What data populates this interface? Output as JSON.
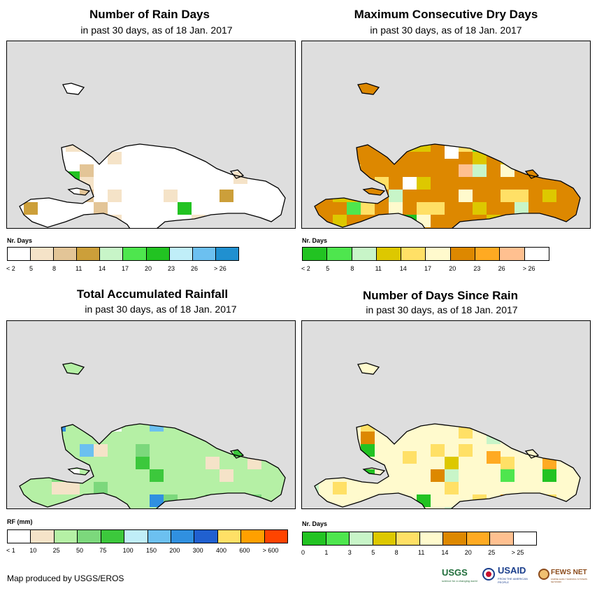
{
  "panels": [
    {
      "title": "Number of Rain Days",
      "subtitle": "in past 30 days, as of 18 Jan. 2017",
      "legend": {
        "title": "Nr. Days",
        "colors": [
          "#ffffff",
          "#f5e3c8",
          "#e3c597",
          "#cc9f3a",
          "#c8f5c8",
          "#4ee64e",
          "#22c322",
          "#c0eef8",
          "#6cc0f0",
          "#2090d0"
        ],
        "labels": [
          "< 2",
          "5",
          "8",
          "11",
          "14",
          "17",
          "20",
          "23",
          "26",
          "> 26"
        ]
      },
      "map": {
        "base": "#ffffff",
        "patches": [
          [
            "#f5e3c8",
            20
          ],
          [
            "#e3c597",
            4
          ],
          [
            "#cc9f3a",
            3
          ],
          [
            "#22c322",
            2
          ],
          [
            "#4ee64e",
            2
          ]
        ]
      }
    },
    {
      "title": "Maximum Consecutive Dry Days",
      "subtitle": "in past 30 days, as of 18 Jan. 2017",
      "legend": {
        "title": "Nr. Days",
        "colors": [
          "#22c322",
          "#4ee64e",
          "#c8f5c8",
          "#ddc800",
          "#ffe066",
          "#fffacd",
          "#dd8800",
          "#ffaa22",
          "#ffc090",
          "#ffffff"
        ],
        "labels": [
          "< 2",
          "5",
          "8",
          "11",
          "14",
          "17",
          "20",
          "23",
          "26",
          "> 26"
        ]
      },
      "map": {
        "base": "#dd8800",
        "patches": [
          [
            "#ddc800",
            18
          ],
          [
            "#ffe066",
            10
          ],
          [
            "#fffacd",
            8
          ],
          [
            "#c8f5c8",
            6
          ],
          [
            "#4ee64e",
            3
          ],
          [
            "#22c322",
            2
          ],
          [
            "#ffc090",
            1
          ],
          [
            "#ffffff",
            2
          ]
        ]
      }
    },
    {
      "title": "Total Accumulated Rainfall",
      "subtitle": "in past 30 days, as of 18 Jan. 2017",
      "legend": {
        "title": "RF (mm)",
        "colors": [
          "#ffffff",
          "#f5e3c8",
          "#b5f0a5",
          "#7cd87c",
          "#3cc83c",
          "#c0eef8",
          "#6cc0f0",
          "#3090e0",
          "#2060d0",
          "#ffe066",
          "#ffa000",
          "#ff4400"
        ],
        "labels": [
          "< 1",
          "10",
          "25",
          "50",
          "75",
          "100",
          "150",
          "200",
          "300",
          "400",
          "600",
          "> 600"
        ]
      },
      "map": {
        "base": "#b5f0a5",
        "patches": [
          [
            "#7cd87c",
            16
          ],
          [
            "#f5e3c8",
            10
          ],
          [
            "#ffffff",
            6
          ],
          [
            "#3cc83c",
            4
          ],
          [
            "#6cc0f0",
            2
          ],
          [
            "#3090e0",
            2
          ]
        ]
      }
    },
    {
      "title": "Number of Days Since Rain",
      "subtitle": "in past 30 days, as of 18 Jan. 2017",
      "legend": {
        "title": "Nr. Days",
        "colors": [
          "#22c322",
          "#4ee64e",
          "#c8f5c8",
          "#ddc800",
          "#ffe066",
          "#fffacd",
          "#dd8800",
          "#ffaa22",
          "#ffc090",
          "#ffffff"
        ],
        "labels": [
          "0",
          "1",
          "3",
          "5",
          "8",
          "11",
          "14",
          "20",
          "25",
          "> 25"
        ]
      },
      "map": {
        "base": "#fffacd",
        "patches": [
          [
            "#ffe066",
            14
          ],
          [
            "#c8f5c8",
            6
          ],
          [
            "#ffaa22",
            6
          ],
          [
            "#dd8800",
            3
          ],
          [
            "#22c322",
            5
          ],
          [
            "#4ee64e",
            3
          ],
          [
            "#ddc800",
            3
          ]
        ]
      }
    }
  ],
  "credit": "Map produced by USGS/EROS",
  "logos": {
    "usgs": "USGS",
    "usgs_tagline": "science for a changing world",
    "usaid": "USAID",
    "usaid_tagline": "FROM THE AMERICAN PEOPLE",
    "fewsnet": "FEWS NET",
    "fewsnet_tagline": "FAMINE EARLY WARNING SYSTEMS NETWORK"
  }
}
